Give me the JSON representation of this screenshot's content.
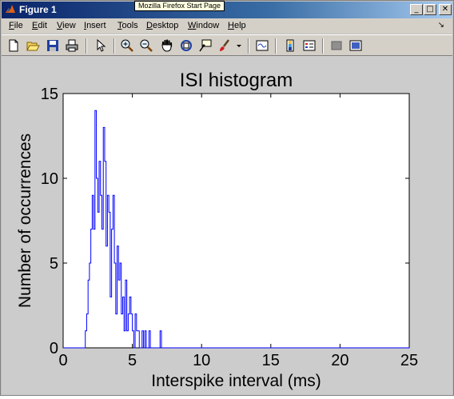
{
  "window": {
    "title": "Figure 1",
    "tooltip": "Mozilla Firefox Start Page"
  },
  "menubar": {
    "items": [
      {
        "label": "File",
        "underline": "F",
        "rest": "ile"
      },
      {
        "label": "Edit",
        "underline": "E",
        "rest": "dit"
      },
      {
        "label": "View",
        "underline": "V",
        "rest": "iew"
      },
      {
        "label": "Insert",
        "underline": "I",
        "rest": "nsert"
      },
      {
        "label": "Tools",
        "underline": "T",
        "rest": "ools"
      },
      {
        "label": "Desktop",
        "underline": "D",
        "rest": "esktop"
      },
      {
        "label": "Window",
        "underline": "W",
        "rest": "indow"
      },
      {
        "label": "Help",
        "underline": "H",
        "rest": "elp"
      }
    ]
  },
  "toolbar": {
    "icons": [
      "new-figure-icon",
      "open-file-icon",
      "save-icon",
      "print-icon",
      "edit-plot-arrow-icon",
      "zoom-in-icon",
      "zoom-out-icon",
      "pan-hand-icon",
      "rotate-3d-icon",
      "data-cursor-icon",
      "brush-icon",
      "brush-dropdown-icon",
      "link-plot-icon",
      "colorbar-icon",
      "legend-icon",
      "hide-plot-tools-icon",
      "show-plot-tools-icon"
    ]
  },
  "chart_data": {
    "type": "line",
    "title": "ISI histogram",
    "xlabel": "Interspike interval (ms)",
    "ylabel": "Number of occurrences",
    "xlim": [
      0,
      25
    ],
    "ylim": [
      0,
      15
    ],
    "xticks": [
      0,
      5,
      10,
      15,
      20,
      25
    ],
    "yticks": [
      0,
      5,
      10,
      15
    ],
    "grid": false,
    "line_color": "#0000ff",
    "bin_width": 0.1,
    "series": [
      {
        "x": [
          1.5,
          1.6,
          1.7,
          1.8,
          1.9,
          2.0,
          2.1,
          2.2,
          2.3,
          2.4,
          2.5,
          2.6,
          2.7,
          2.8,
          2.9,
          3.0,
          3.1,
          3.2,
          3.3,
          3.4,
          3.5,
          3.6,
          3.7,
          3.8,
          3.9,
          4.0,
          4.1,
          4.2,
          4.3,
          4.4,
          4.5,
          4.6,
          4.7,
          4.8,
          4.9,
          5.0,
          5.1,
          5.2,
          5.3,
          5.4,
          5.5,
          5.6,
          5.7,
          5.8,
          5.9,
          6.0,
          6.1,
          6.2,
          6.3,
          6.4,
          6.5,
          6.6,
          6.7,
          6.8,
          6.9,
          7.0,
          7.1
        ],
        "values": [
          0,
          1,
          2,
          4,
          5,
          7,
          9,
          7,
          14,
          10,
          8,
          11,
          9,
          7,
          13,
          11,
          6,
          9,
          8,
          3,
          7,
          9,
          5,
          2,
          6,
          4,
          5,
          2,
          3,
          1,
          4,
          1,
          2,
          3,
          2,
          1,
          0,
          2,
          1,
          1,
          0,
          0,
          1,
          0,
          1,
          0,
          0,
          1,
          0,
          0,
          0,
          0,
          0,
          0,
          0,
          1,
          0
        ]
      }
    ]
  }
}
